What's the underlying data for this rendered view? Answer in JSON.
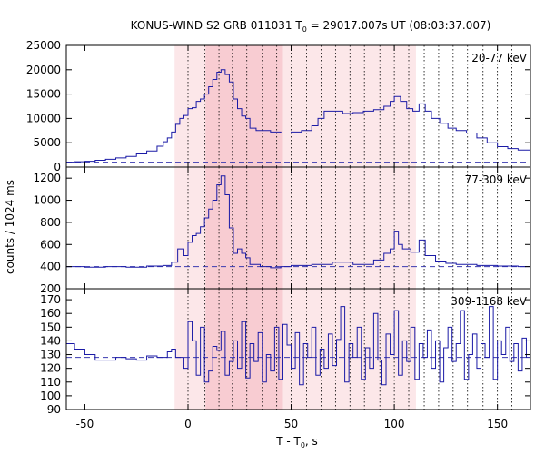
{
  "chart_data": {
    "type": "line",
    "title": {
      "main": "KONUS-WIND S2 GRB 011031 T",
      "sub": "0",
      "rest": " = 29017.007s UT (08:03:37.007)"
    },
    "xlabel": {
      "main": "T - T",
      "sub": "0",
      "rest": ", s"
    },
    "ylabel": "counts / 1024 ms",
    "xlim": [
      -59,
      166
    ],
    "xticks": [
      -50,
      0,
      50,
      100,
      150
    ],
    "shaded_intervals": [
      {
        "start": -6.5,
        "end": 110.5,
        "shade": "light"
      },
      {
        "start": 8.5,
        "end": 46.0,
        "shade": "darker"
      }
    ],
    "dotted_vertical_lines": [
      0,
      8.2,
      15.0,
      21.5,
      28.5,
      36.0,
      43.0,
      50.0,
      57.5,
      64.5,
      71.5,
      78.5,
      85.5,
      93.0,
      100.0,
      107.0,
      114.5,
      121.5,
      128.5,
      135.5,
      143.0,
      150.0,
      157.0
    ],
    "panels": [
      {
        "label": "20-77 keV",
        "ylim": [
          0,
          25000
        ],
        "yticks": [
          0,
          5000,
          10000,
          15000,
          20000,
          25000
        ],
        "background_level": 1000,
        "series": [
          {
            "type": "step",
            "x": [
              -59,
              -55,
              -50,
              -45,
              -40,
              -35,
              -30,
              -25,
              -20,
              -15,
              -12,
              -10,
              -8,
              -6,
              -4,
              -2,
              0,
              2,
              4,
              6,
              8,
              10,
              12,
              14,
              16,
              18,
              20,
              22,
              24,
              26,
              28,
              30,
              33,
              36,
              40,
              45,
              50,
              55,
              60,
              63,
              66,
              70,
              75,
              80,
              85,
              90,
              95,
              98,
              100,
              103,
              106,
              109,
              112,
              115,
              118,
              122,
              126,
              130,
              135,
              140,
              145,
              150,
              155,
              160,
              166
            ],
            "y": [
              1000,
              1100,
              1200,
              1400,
              1600,
              1900,
              2200,
              2700,
              3300,
              4300,
              5200,
              6000,
              7200,
              8800,
              10000,
              10600,
              12000,
              12200,
              13500,
              14000,
              15000,
              16500,
              18000,
              19500,
              20000,
              19000,
              17500,
              14000,
              12000,
              10500,
              10000,
              8000,
              7500,
              7500,
              7200,
              7000,
              7200,
              7500,
              8500,
              10000,
              11500,
              11500,
              11000,
              11200,
              11500,
              11800,
              12500,
              13500,
              14500,
              13500,
              12000,
              11500,
              13000,
              11500,
              10000,
              9000,
              8000,
              7500,
              7000,
              6000,
              5000,
              4200,
              3800,
              3500,
              3200
            ]
          }
        ]
      },
      {
        "label": "77-309 keV",
        "ylim": [
          200,
          1300
        ],
        "yticks": [
          200,
          400,
          600,
          800,
          1000,
          1200
        ],
        "background_level": 400,
        "series": [
          {
            "type": "step",
            "x": [
              -59,
              -50,
              -40,
              -30,
              -20,
              -12,
              -8,
              -5,
              -2,
              0,
              2,
              4,
              6,
              8,
              10,
              12,
              14,
              16,
              18,
              20,
              22,
              24,
              26,
              28,
              30,
              35,
              40,
              45,
              50,
              60,
              70,
              80,
              90,
              95,
              98,
              100,
              102,
              104,
              108,
              112,
              115,
              120,
              125,
              130,
              140,
              150,
              160,
              166
            ],
            "y": [
              400,
              395,
              400,
              395,
              405,
              410,
              440,
              560,
              500,
              620,
              680,
              700,
              760,
              840,
              920,
              1000,
              1140,
              1220,
              1050,
              750,
              520,
              560,
              520,
              480,
              420,
              400,
              390,
              400,
              410,
              420,
              440,
              420,
              460,
              520,
              560,
              720,
              600,
              560,
              530,
              640,
              500,
              450,
              430,
              420,
              410,
              405,
              400,
              410
            ]
          }
        ]
      },
      {
        "label": "309-1168 keV",
        "ylim": [
          90,
          178
        ],
        "yticks": [
          90,
          100,
          110,
          120,
          130,
          140,
          150,
          160,
          170
        ],
        "background_level": 128,
        "series": [
          {
            "type": "step",
            "x": [
              -59,
              -55,
              -50,
              -45,
              -40,
              -35,
              -30,
              -25,
              -20,
              -15,
              -10,
              -8,
              -6,
              -4,
              -2,
              0,
              2,
              4,
              6,
              8,
              10,
              12,
              14,
              16,
              18,
              20,
              22,
              24,
              26,
              28,
              30,
              32,
              34,
              36,
              38,
              40,
              42,
              44,
              46,
              48,
              50,
              52,
              54,
              56,
              58,
              60,
              62,
              64,
              66,
              68,
              70,
              72,
              74,
              76,
              78,
              80,
              82,
              84,
              86,
              88,
              90,
              92,
              94,
              96,
              98,
              100,
              102,
              104,
              106,
              108,
              110,
              112,
              114,
              116,
              118,
              120,
              122,
              124,
              126,
              128,
              130,
              132,
              134,
              136,
              138,
              140,
              142,
              144,
              146,
              148,
              150,
              152,
              154,
              156,
              158,
              160,
              162,
              164,
              166
            ],
            "y": [
              138,
              134,
              130,
              126,
              126,
              128,
              127,
              126,
              129,
              128,
              132,
              134,
              128,
              128,
              120,
              154,
              140,
              115,
              150,
              110,
              118,
              136,
              133,
              147,
              115,
              125,
              140,
              120,
              154,
              113,
              138,
              125,
              146,
              110,
              130,
              118,
              150,
              112,
              152,
              137,
              120,
              146,
              108,
              138,
              128,
              150,
              115,
              134,
              120,
              145,
              122,
              141,
              165,
              110,
              138,
              128,
              150,
              112,
              135,
              120,
              160,
              126,
              108,
              145,
              130,
              162,
              115,
              140,
              125,
              150,
              112,
              138,
              128,
              148,
              120,
              140,
              110,
              135,
              150,
              125,
              138,
              162,
              112,
              130,
              145,
              120,
              138,
              128,
              165,
              112,
              140,
              130,
              150,
              125,
              138,
              118,
              142,
              128,
              132
            ]
          }
        ]
      }
    ]
  }
}
